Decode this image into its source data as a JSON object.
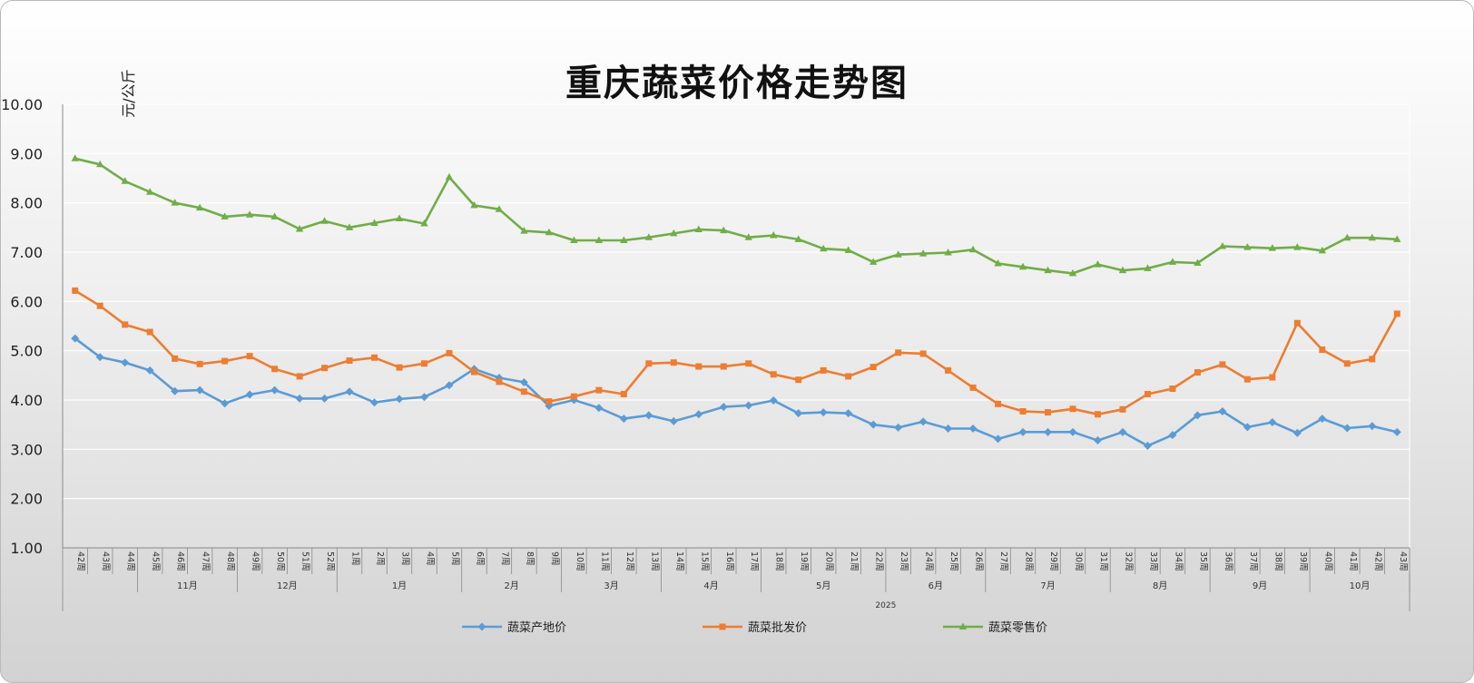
{
  "chart_data": {
    "type": "line",
    "title": "重庆蔬菜价格走势图",
    "ylabel": "元/公斤",
    "ylim": [
      1,
      10
    ],
    "yticks": [
      "1.00",
      "2.00",
      "3.00",
      "4.00",
      "5.00",
      "6.00",
      "7.00",
      "8.00",
      "9.00",
      "10.00"
    ],
    "grid": true,
    "legend_position": "bottom",
    "year_label": "2025",
    "weeks": [
      "42周",
      "43周",
      "44周",
      "45周",
      "46周",
      "47周",
      "48周",
      "49周",
      "50周",
      "51周",
      "52周",
      "1周",
      "2周",
      "3周",
      "4周",
      "5周",
      "6周",
      "7周",
      "8周",
      "9周",
      "10周",
      "11周",
      "12周",
      "13周",
      "14周",
      "15周",
      "16周",
      "17周",
      "18周",
      "19周",
      "20周",
      "21周",
      "22周",
      "23周",
      "24周",
      "25周",
      "26周",
      "27周",
      "28周",
      "29周",
      "30周",
      "31周",
      "32周",
      "33周",
      "34周",
      "35周",
      "36周",
      "37周",
      "38周",
      "39周",
      "40周",
      "41周",
      "42周",
      "43周"
    ],
    "months": [
      {
        "label": "",
        "start": 0,
        "end": 3
      },
      {
        "label": "11月",
        "start": 3,
        "end": 7
      },
      {
        "label": "12月",
        "start": 7,
        "end": 11
      },
      {
        "label": "1月",
        "start": 11,
        "end": 16
      },
      {
        "label": "2月",
        "start": 16,
        "end": 20
      },
      {
        "label": "3月",
        "start": 20,
        "end": 24
      },
      {
        "label": "4月",
        "start": 24,
        "end": 28
      },
      {
        "label": "5月",
        "start": 28,
        "end": 33
      },
      {
        "label": "6月",
        "start": 33,
        "end": 37
      },
      {
        "label": "7月",
        "start": 37,
        "end": 42
      },
      {
        "label": "8月",
        "start": 42,
        "end": 46
      },
      {
        "label": "9月",
        "start": 46,
        "end": 50
      },
      {
        "label": "10月",
        "start": 50,
        "end": 54
      }
    ],
    "series": [
      {
        "name": "蔬菜产地价",
        "color": "#5b9bd5",
        "marker": "diamond",
        "values": [
          5.25,
          4.87,
          4.76,
          4.6,
          4.18,
          4.2,
          3.93,
          4.11,
          4.2,
          4.03,
          4.03,
          4.17,
          3.95,
          4.02,
          4.06,
          4.3,
          4.63,
          4.45,
          4.36,
          3.88,
          4.0,
          3.84,
          3.62,
          3.69,
          3.57,
          3.71,
          3.86,
          3.89,
          3.99,
          3.73,
          3.75,
          3.73,
          3.5,
          3.44,
          3.56,
          3.42,
          3.42,
          3.21,
          3.35,
          3.35,
          3.35,
          3.18,
          3.35,
          3.07,
          3.29,
          3.69,
          3.77,
          3.45,
          3.55,
          3.33,
          3.62,
          3.43,
          3.47,
          3.35
        ]
      },
      {
        "name": "蔬菜批发价",
        "color": "#ed7d31",
        "marker": "square",
        "values": [
          6.22,
          5.91,
          5.53,
          5.38,
          4.84,
          4.73,
          4.79,
          4.89,
          4.63,
          4.48,
          4.65,
          4.8,
          4.86,
          4.66,
          4.74,
          4.95,
          4.57,
          4.37,
          4.17,
          3.97,
          4.07,
          4.2,
          4.12,
          4.74,
          4.76,
          4.68,
          4.68,
          4.74,
          4.52,
          4.41,
          4.6,
          4.48,
          4.67,
          4.96,
          4.94,
          4.6,
          4.25,
          3.92,
          3.77,
          3.75,
          3.82,
          3.71,
          3.81,
          4.12,
          4.23,
          4.56,
          4.72,
          4.42,
          4.46,
          5.56,
          5.02,
          4.74,
          4.83,
          5.75
        ]
      },
      {
        "name": "蔬菜零售价",
        "color": "#70ad47",
        "marker": "triangle",
        "values": [
          8.9,
          8.78,
          8.44,
          8.22,
          8.0,
          7.9,
          7.72,
          7.76,
          7.72,
          7.47,
          7.63,
          7.5,
          7.59,
          7.68,
          7.58,
          8.52,
          7.95,
          7.87,
          7.43,
          7.4,
          7.24,
          7.24,
          7.24,
          7.3,
          7.38,
          7.46,
          7.44,
          7.3,
          7.34,
          7.26,
          7.07,
          7.04,
          6.8,
          6.95,
          6.97,
          6.99,
          7.05,
          6.77,
          6.7,
          6.63,
          6.57,
          6.75,
          6.63,
          6.67,
          6.8,
          6.78,
          7.12,
          7.1,
          7.08,
          7.1,
          7.03,
          7.29,
          7.29,
          7.26
        ]
      }
    ]
  }
}
